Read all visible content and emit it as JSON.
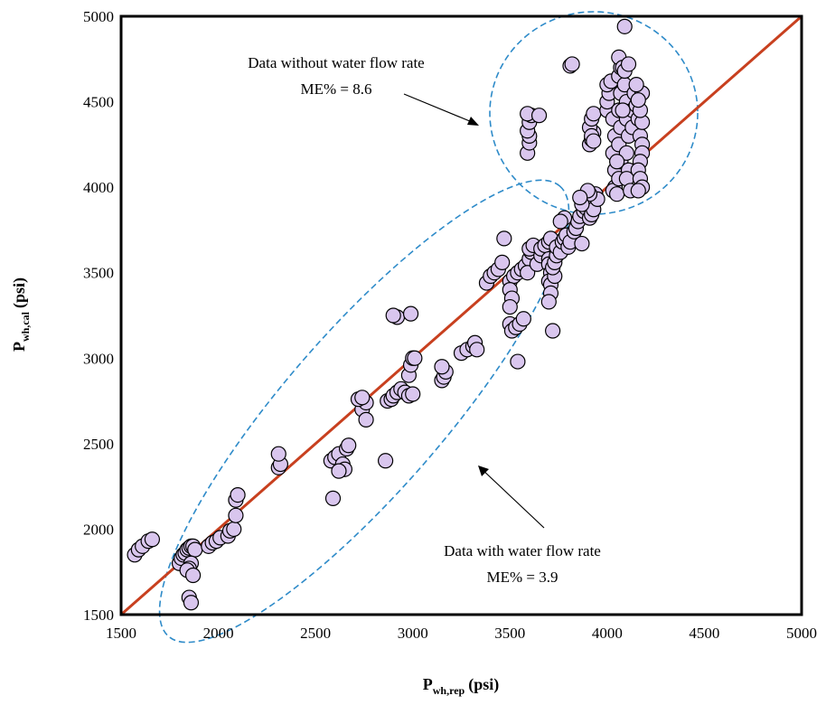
{
  "chart_data": {
    "type": "scatter",
    "xlabel_main": "P",
    "xlabel_sub": "wh,rep",
    "xlabel_unit": "(psi)",
    "ylabel_main": "P",
    "ylabel_sub": "wh,cal",
    "ylabel_unit": "(psi)",
    "xlim": [
      1500,
      5000
    ],
    "ylim": [
      1500,
      5000
    ],
    "xticks": [
      1500,
      2000,
      2500,
      3000,
      3500,
      4000,
      4500,
      5000
    ],
    "yticks": [
      1500,
      2000,
      2500,
      3000,
      3500,
      4000,
      4500,
      5000
    ],
    "grid": false,
    "reference_line": {
      "x": [
        1500,
        5000
      ],
      "y": [
        1500,
        5000
      ],
      "color": "#c8401f"
    },
    "point_color": "#d9c6ee",
    "point_edge": "#000000",
    "ellipse_color": "#2e8bc9",
    "annotations": [
      {
        "lines": [
          "Data without water flow rate",
          "ME% = 8.6"
        ]
      },
      {
        "lines": [
          "Data with water flow rate",
          "ME% = 3.9"
        ]
      }
    ],
    "series": [
      {
        "values": [
          [
            1570,
            1850
          ],
          [
            1590,
            1880
          ],
          [
            1610,
            1900
          ],
          [
            1640,
            1930
          ],
          [
            1660,
            1940
          ],
          [
            1800,
            1800
          ],
          [
            1810,
            1830
          ],
          [
            1820,
            1850
          ],
          [
            1830,
            1860
          ],
          [
            1840,
            1880
          ],
          [
            1850,
            1890
          ],
          [
            1860,
            1900
          ],
          [
            1870,
            1900
          ],
          [
            1880,
            1880
          ],
          [
            1860,
            1800
          ],
          [
            1850,
            1770
          ],
          [
            1840,
            1760
          ],
          [
            1870,
            1730
          ],
          [
            1850,
            1600
          ],
          [
            1860,
            1570
          ],
          [
            1950,
            1900
          ],
          [
            1970,
            1920
          ],
          [
            1990,
            1930
          ],
          [
            2010,
            1950
          ],
          [
            2050,
            1960
          ],
          [
            2060,
            1990
          ],
          [
            2080,
            2000
          ],
          [
            2090,
            2080
          ],
          [
            2090,
            2170
          ],
          [
            2100,
            2200
          ],
          [
            2310,
            2360
          ],
          [
            2320,
            2380
          ],
          [
            2310,
            2440
          ],
          [
            2580,
            2400
          ],
          [
            2600,
            2420
          ],
          [
            2620,
            2440
          ],
          [
            2640,
            2380
          ],
          [
            2650,
            2350
          ],
          [
            2620,
            2340
          ],
          [
            2660,
            2470
          ],
          [
            2670,
            2490
          ],
          [
            2590,
            2180
          ],
          [
            2740,
            2700
          ],
          [
            2760,
            2740
          ],
          [
            2720,
            2760
          ],
          [
            2740,
            2770
          ],
          [
            2760,
            2640
          ],
          [
            2860,
            2400
          ],
          [
            2870,
            2750
          ],
          [
            2890,
            2760
          ],
          [
            2900,
            2780
          ],
          [
            2920,
            2800
          ],
          [
            2940,
            2820
          ],
          [
            2960,
            2800
          ],
          [
            2980,
            2780
          ],
          [
            3000,
            2790
          ],
          [
            2980,
            2900
          ],
          [
            2990,
            2960
          ],
          [
            3000,
            3000
          ],
          [
            3010,
            3000
          ],
          [
            2920,
            3240
          ],
          [
            2900,
            3250
          ],
          [
            2990,
            3260
          ],
          [
            3150,
            2870
          ],
          [
            3160,
            2890
          ],
          [
            3170,
            2920
          ],
          [
            3150,
            2950
          ],
          [
            3250,
            3030
          ],
          [
            3280,
            3050
          ],
          [
            3310,
            3070
          ],
          [
            3320,
            3090
          ],
          [
            3330,
            3050
          ],
          [
            3380,
            3440
          ],
          [
            3400,
            3480
          ],
          [
            3420,
            3500
          ],
          [
            3440,
            3520
          ],
          [
            3460,
            3560
          ],
          [
            3470,
            3700
          ],
          [
            3500,
            3450
          ],
          [
            3520,
            3480
          ],
          [
            3540,
            3500
          ],
          [
            3500,
            3400
          ],
          [
            3510,
            3350
          ],
          [
            3500,
            3300
          ],
          [
            3500,
            3200
          ],
          [
            3510,
            3160
          ],
          [
            3530,
            3180
          ],
          [
            3550,
            3200
          ],
          [
            3570,
            3230
          ],
          [
            3540,
            2980
          ],
          [
            3560,
            3520
          ],
          [
            3580,
            3540
          ],
          [
            3600,
            3580
          ],
          [
            3610,
            3620
          ],
          [
            3600,
            3640
          ],
          [
            3620,
            3660
          ],
          [
            3590,
            3500
          ],
          [
            3640,
            3550
          ],
          [
            3660,
            3600
          ],
          [
            3660,
            3640
          ],
          [
            3680,
            3660
          ],
          [
            3700,
            3680
          ],
          [
            3710,
            3700
          ],
          [
            3700,
            3580
          ],
          [
            3700,
            3550
          ],
          [
            3710,
            3500
          ],
          [
            3700,
            3450
          ],
          [
            3710,
            3430
          ],
          [
            3710,
            3380
          ],
          [
            3700,
            3330
          ],
          [
            3720,
            3160
          ],
          [
            3730,
            3480
          ],
          [
            3720,
            3530
          ],
          [
            3730,
            3560
          ],
          [
            3740,
            3600
          ],
          [
            3740,
            3650
          ],
          [
            3760,
            3620
          ],
          [
            3770,
            3680
          ],
          [
            3780,
            3700
          ],
          [
            3790,
            3720
          ],
          [
            3800,
            3650
          ],
          [
            3810,
            3680
          ],
          [
            3830,
            3740
          ],
          [
            3840,
            3760
          ],
          [
            3850,
            3800
          ],
          [
            3860,
            3830
          ],
          [
            3870,
            3670
          ],
          [
            3880,
            3860
          ],
          [
            3890,
            3880
          ],
          [
            3900,
            3900
          ],
          [
            3910,
            3820
          ],
          [
            3920,
            3840
          ],
          [
            3930,
            3870
          ],
          [
            3940,
            3960
          ],
          [
            3950,
            3930
          ],
          [
            3910,
            3960
          ],
          [
            3900,
            3980
          ],
          [
            3870,
            3900
          ],
          [
            3860,
            3940
          ],
          [
            3780,
            3820
          ],
          [
            3760,
            3800
          ],
          [
            3590,
            4200
          ],
          [
            3600,
            4260
          ],
          [
            3600,
            4300
          ],
          [
            3590,
            4330
          ],
          [
            3600,
            4380
          ],
          [
            3610,
            4420
          ],
          [
            3590,
            4430
          ],
          [
            3650,
            4420
          ],
          [
            3810,
            4710
          ],
          [
            3820,
            4720
          ],
          [
            3910,
            4250
          ],
          [
            3920,
            4280
          ],
          [
            3930,
            4320
          ],
          [
            3910,
            4350
          ],
          [
            3920,
            4400
          ],
          [
            3930,
            4430
          ],
          [
            3920,
            4300
          ],
          [
            3930,
            4270
          ],
          [
            4000,
            4450
          ],
          [
            4000,
            4500
          ],
          [
            4010,
            4550
          ],
          [
            4000,
            4600
          ],
          [
            4020,
            4620
          ],
          [
            4030,
            4400
          ],
          [
            4040,
            4300
          ],
          [
            4030,
            4200
          ],
          [
            4040,
            4100
          ],
          [
            4040,
            4000
          ],
          [
            4030,
            3980
          ],
          [
            4050,
            3960
          ],
          [
            4060,
            4050
          ],
          [
            4070,
            4150
          ],
          [
            4060,
            4250
          ],
          [
            4070,
            4350
          ],
          [
            4060,
            4450
          ],
          [
            4070,
            4550
          ],
          [
            4060,
            4650
          ],
          [
            4070,
            4700
          ],
          [
            4060,
            4760
          ],
          [
            4090,
            4940
          ],
          [
            4080,
            4700
          ],
          [
            4090,
            4600
          ],
          [
            4100,
            4500
          ],
          [
            4100,
            4400
          ],
          [
            4110,
            4300
          ],
          [
            4100,
            4200
          ],
          [
            4110,
            4100
          ],
          [
            4100,
            4050
          ],
          [
            4120,
            3980
          ],
          [
            4130,
            4350
          ],
          [
            4130,
            4450
          ],
          [
            4140,
            4550
          ],
          [
            4150,
            4480
          ],
          [
            4160,
            4400
          ],
          [
            4170,
            4300
          ],
          [
            4180,
            4250
          ],
          [
            4180,
            4200
          ],
          [
            4170,
            4150
          ],
          [
            4160,
            4100
          ],
          [
            4170,
            4050
          ],
          [
            4180,
            4000
          ],
          [
            4160,
            3980
          ],
          [
            4180,
            4380
          ],
          [
            4170,
            4450
          ],
          [
            4180,
            4550
          ],
          [
            4160,
            4510
          ],
          [
            4150,
            4600
          ],
          [
            4090,
            4680
          ],
          [
            4110,
            4720
          ],
          [
            4050,
            4150
          ],
          [
            4080,
            4450
          ]
        ]
      }
    ]
  }
}
